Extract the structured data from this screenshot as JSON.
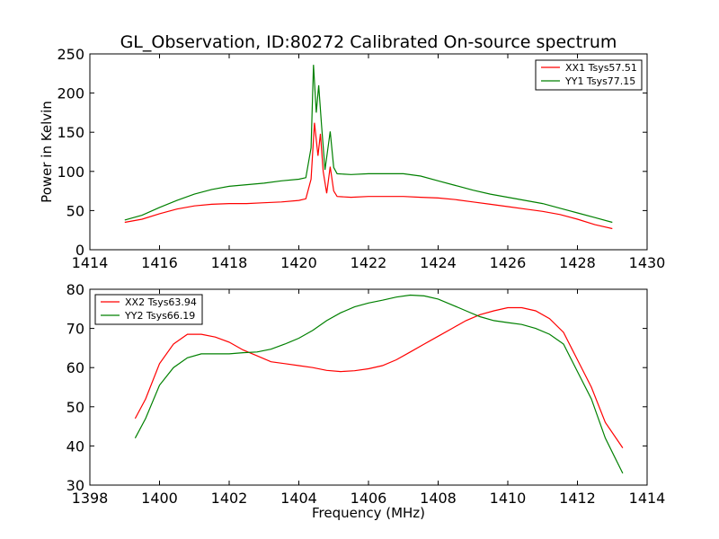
{
  "title": "GL_Observation, ID:80272 Calibrated On-source spectrum",
  "chart_data": [
    {
      "type": "line",
      "xlabel": "",
      "ylabel": "Power in Kelvin",
      "xlim": [
        1414,
        1430
      ],
      "ylim": [
        0,
        250
      ],
      "xticks": [
        "1414",
        "1416",
        "1418",
        "1420",
        "1422",
        "1424",
        "1426",
        "1428",
        "1430"
      ],
      "yticks": [
        "0",
        "50",
        "100",
        "150",
        "200",
        "250"
      ],
      "legend_position": "top-right",
      "series": [
        {
          "name": "XX1 Tsys57.51",
          "color": "#ff0000",
          "points": [
            [
              1415,
              35
            ],
            [
              1415.5,
              39
            ],
            [
              1416,
              46
            ],
            [
              1416.5,
              52
            ],
            [
              1417,
              56
            ],
            [
              1417.5,
              58
            ],
            [
              1418,
              59
            ],
            [
              1418.5,
              59
            ],
            [
              1419,
              60
            ],
            [
              1419.5,
              61
            ],
            [
              1420,
              63
            ],
            [
              1420.2,
              65
            ],
            [
              1420.35,
              90
            ],
            [
              1420.45,
              162
            ],
            [
              1420.55,
              120
            ],
            [
              1420.62,
              148
            ],
            [
              1420.7,
              100
            ],
            [
              1420.8,
              72
            ],
            [
              1420.9,
              106
            ],
            [
              1421.0,
              75
            ],
            [
              1421.1,
              68
            ],
            [
              1421.5,
              67
            ],
            [
              1422,
              68
            ],
            [
              1422.5,
              68
            ],
            [
              1423,
              68
            ],
            [
              1423.5,
              67
            ],
            [
              1424,
              66
            ],
            [
              1424.5,
              64
            ],
            [
              1425,
              61
            ],
            [
              1425.5,
              58
            ],
            [
              1426,
              55
            ],
            [
              1426.5,
              52
            ],
            [
              1427,
              49
            ],
            [
              1427.5,
              45
            ],
            [
              1428,
              39
            ],
            [
              1428.5,
              32
            ],
            [
              1429,
              27
            ]
          ]
        },
        {
          "name": "YY1 Tsys77.15",
          "color": "#008000",
          "points": [
            [
              1415,
              38
            ],
            [
              1415.5,
              44
            ],
            [
              1416,
              54
            ],
            [
              1416.5,
              63
            ],
            [
              1417,
              71
            ],
            [
              1417.5,
              77
            ],
            [
              1418,
              81
            ],
            [
              1418.5,
              83
            ],
            [
              1419,
              85
            ],
            [
              1419.5,
              88
            ],
            [
              1420,
              90
            ],
            [
              1420.2,
              92
            ],
            [
              1420.35,
              130
            ],
            [
              1420.42,
              236
            ],
            [
              1420.5,
              175
            ],
            [
              1420.57,
              210
            ],
            [
              1420.65,
              160
            ],
            [
              1420.75,
              102
            ],
            [
              1420.9,
              151
            ],
            [
              1421.0,
              105
            ],
            [
              1421.1,
              97
            ],
            [
              1421.5,
              96
            ],
            [
              1422,
              97
            ],
            [
              1422.5,
              97
            ],
            [
              1423,
              97
            ],
            [
              1423.5,
              94
            ],
            [
              1424,
              88
            ],
            [
              1424.5,
              82
            ],
            [
              1425,
              76
            ],
            [
              1425.5,
              71
            ],
            [
              1426,
              67
            ],
            [
              1426.5,
              63
            ],
            [
              1427,
              59
            ],
            [
              1427.5,
              53
            ],
            [
              1428,
              47
            ],
            [
              1428.5,
              41
            ],
            [
              1429,
              35
            ]
          ]
        }
      ]
    },
    {
      "type": "line",
      "xlabel": "Frequency (MHz)",
      "ylabel": "",
      "xlim": [
        1398,
        1414
      ],
      "ylim": [
        30,
        80
      ],
      "xticks": [
        "1398",
        "1400",
        "1402",
        "1404",
        "1406",
        "1408",
        "1410",
        "1412",
        "1414"
      ],
      "yticks": [
        "30",
        "40",
        "50",
        "60",
        "70",
        "80"
      ],
      "legend_position": "top-left",
      "series": [
        {
          "name": "XX2 Tsys63.94",
          "color": "#ff0000",
          "points": [
            [
              1399.3,
              47
            ],
            [
              1399.6,
              52
            ],
            [
              1400.0,
              61
            ],
            [
              1400.4,
              66
            ],
            [
              1400.8,
              68.5
            ],
            [
              1401.2,
              68.5
            ],
            [
              1401.6,
              67.8
            ],
            [
              1402.0,
              66.5
            ],
            [
              1402.4,
              64.5
            ],
            [
              1402.8,
              63
            ],
            [
              1403.2,
              61.5
            ],
            [
              1403.6,
              61
            ],
            [
              1404.0,
              60.5
            ],
            [
              1404.4,
              60
            ],
            [
              1404.8,
              59.3
            ],
            [
              1405.2,
              59
            ],
            [
              1405.6,
              59.2
            ],
            [
              1406.0,
              59.7
            ],
            [
              1406.4,
              60.5
            ],
            [
              1406.8,
              62
            ],
            [
              1407.2,
              64
            ],
            [
              1407.6,
              66
            ],
            [
              1408.0,
              68
            ],
            [
              1408.4,
              70
            ],
            [
              1408.8,
              72
            ],
            [
              1409.2,
              73.5
            ],
            [
              1409.6,
              74.5
            ],
            [
              1410.0,
              75.3
            ],
            [
              1410.4,
              75.3
            ],
            [
              1410.8,
              74.5
            ],
            [
              1411.2,
              72.5
            ],
            [
              1411.6,
              69
            ],
            [
              1412.0,
              62
            ],
            [
              1412.4,
              55
            ],
            [
              1412.8,
              46
            ],
            [
              1413.3,
              39.5
            ]
          ]
        },
        {
          "name": "YY2 Tsys66.19",
          "color": "#008000",
          "points": [
            [
              1399.3,
              42
            ],
            [
              1399.6,
              47
            ],
            [
              1400.0,
              55.5
            ],
            [
              1400.4,
              60
            ],
            [
              1400.8,
              62.5
            ],
            [
              1401.2,
              63.5
            ],
            [
              1401.6,
              63.5
            ],
            [
              1402.0,
              63.5
            ],
            [
              1402.4,
              63.8
            ],
            [
              1402.8,
              64
            ],
            [
              1403.2,
              64.7
            ],
            [
              1403.6,
              66
            ],
            [
              1404.0,
              67.5
            ],
            [
              1404.4,
              69.5
            ],
            [
              1404.8,
              72
            ],
            [
              1405.2,
              74
            ],
            [
              1405.6,
              75.5
            ],
            [
              1406.0,
              76.5
            ],
            [
              1406.4,
              77.2
            ],
            [
              1406.8,
              78
            ],
            [
              1407.2,
              78.5
            ],
            [
              1407.6,
              78.3
            ],
            [
              1408.0,
              77.5
            ],
            [
              1408.4,
              76
            ],
            [
              1408.8,
              74.5
            ],
            [
              1409.2,
              73
            ],
            [
              1409.6,
              72
            ],
            [
              1410.0,
              71.5
            ],
            [
              1410.4,
              71
            ],
            [
              1410.8,
              70
            ],
            [
              1411.2,
              68.5
            ],
            [
              1411.6,
              66
            ],
            [
              1412.0,
              59
            ],
            [
              1412.4,
              52
            ],
            [
              1412.8,
              42
            ],
            [
              1413.3,
              33
            ]
          ]
        }
      ]
    }
  ]
}
